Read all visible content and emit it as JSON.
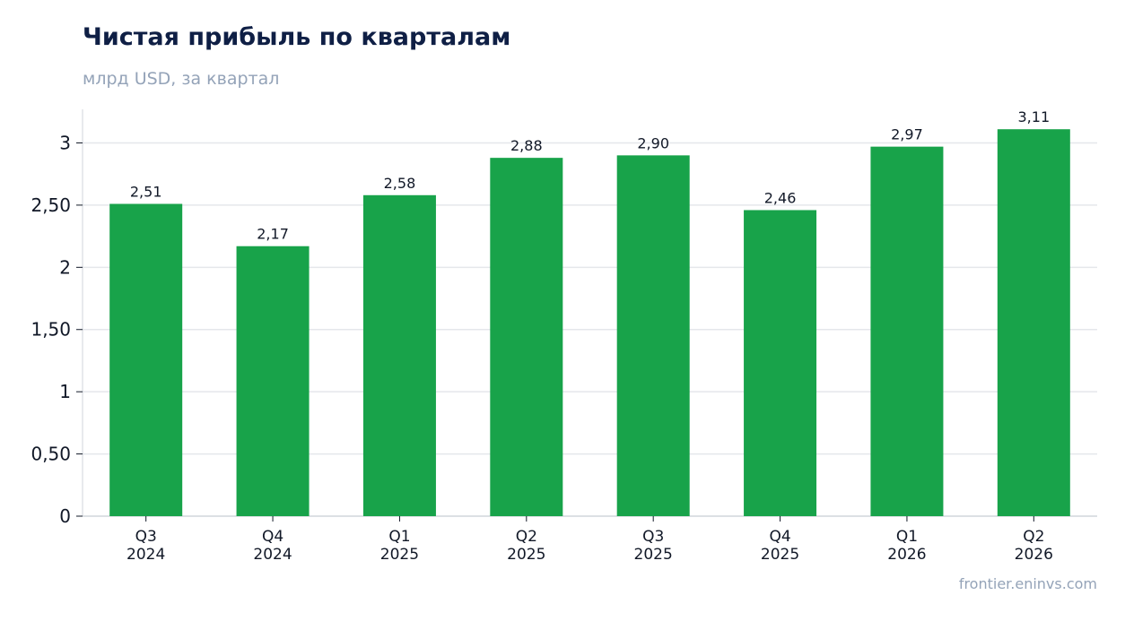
{
  "header": {
    "title": "Чистая прибыль по кварталам",
    "subtitle": "млрд USD, за квартал"
  },
  "footer": {
    "source": "frontier.eninvs.com"
  },
  "colors": {
    "bar": "#18a34a",
    "grid": "#e5e7eb",
    "axis": "#d1d5db",
    "text": "#111827",
    "muted": "#94a3b8",
    "title": "#0f1f45"
  },
  "chart_data": {
    "type": "bar",
    "title": "Чистая прибыль по кварталам",
    "subtitle": "млрд USD, за квартал",
    "xlabel": "",
    "ylabel": "",
    "categories": [
      "Q3 2024",
      "Q4 2024",
      "Q1 2025",
      "Q2 2025",
      "Q3 2025",
      "Q4 2025",
      "Q1 2026",
      "Q2 2026"
    ],
    "category_lines": [
      [
        "Q3",
        "2024"
      ],
      [
        "Q4",
        "2024"
      ],
      [
        "Q1",
        "2025"
      ],
      [
        "Q2",
        "2025"
      ],
      [
        "Q3",
        "2025"
      ],
      [
        "Q4",
        "2025"
      ],
      [
        "Q1",
        "2026"
      ],
      [
        "Q2",
        "2026"
      ]
    ],
    "values": [
      2.51,
      2.17,
      2.58,
      2.88,
      2.9,
      2.46,
      2.97,
      3.11
    ],
    "value_labels": [
      "2,51",
      "2,17",
      "2,58",
      "2,88",
      "2,90",
      "2,46",
      "2,97",
      "3,11"
    ],
    "yticks": [
      0,
      0.5,
      1,
      1.5,
      2,
      2.5,
      3
    ],
    "ytick_labels": [
      "0",
      "0,50",
      "1",
      "1,50",
      "2",
      "2,50",
      "3"
    ],
    "ylim": [
      0,
      3.27
    ],
    "grid": true,
    "legend": "none"
  }
}
